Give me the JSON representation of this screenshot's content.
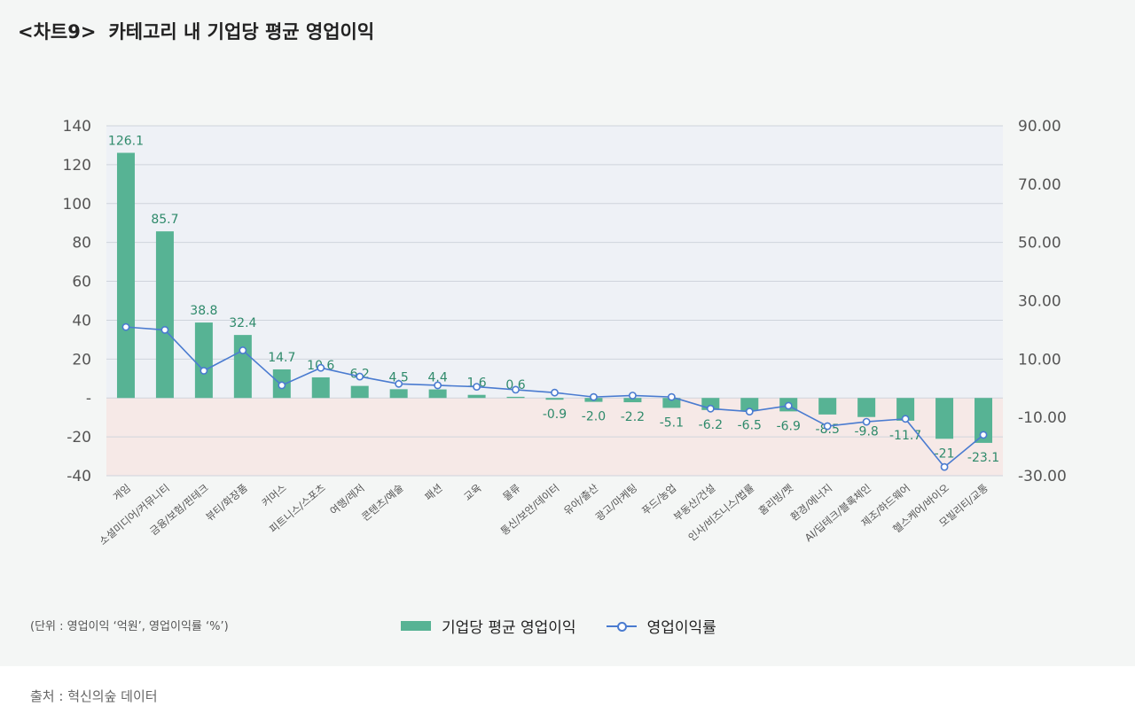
{
  "header": {
    "prefix": "<차트9>",
    "title": "카테고리 내 기업당 평균 영업이익"
  },
  "legend": {
    "bar_label": "기업당 평균 영업이익",
    "line_label": "영업이익률"
  },
  "unit_note": "(단위 : 영업이익 ‘억원’, 영업이익률 ‘%’)",
  "source": "출처 : 혁신의숲 데이터",
  "colors": {
    "bar": "#57b394",
    "bar_label": "#2f8a6b",
    "line": "#4a7bd0",
    "positive_bg": "#eef1f6",
    "negative_bg": "#f6e9e7"
  },
  "chart_data": {
    "type": "bar",
    "categories": [
      "게임",
      "소셜미디어/커뮤니티",
      "금융/보험/핀테크",
      "뷰티/화장품",
      "커머스",
      "피트니스/스포츠",
      "여행/레저",
      "콘텐츠/예술",
      "패션",
      "교육",
      "물류",
      "통신/보안/데이터",
      "유아/출산",
      "광고/마케팅",
      "푸드/농업",
      "부동산/건설",
      "인사/비즈니스/법률",
      "홈리빙/펫",
      "환경/에너지",
      "AI/딥테크/블록체인",
      "제조/하드웨어",
      "헬스케어/바이오",
      "모빌리티/교통"
    ],
    "series": [
      {
        "name": "기업당 평균 영업이익",
        "type": "bar",
        "axis": "left",
        "values": [
          126.1,
          85.7,
          38.8,
          32.4,
          14.7,
          10.6,
          6.2,
          4.5,
          4.4,
          1.6,
          0.6,
          -0.9,
          -2.0,
          -2.2,
          -5.1,
          -6.2,
          -6.5,
          -6.9,
          -8.5,
          -9.8,
          -11.7,
          -21,
          -23.1
        ],
        "labels": [
          "126.1",
          "85.7",
          "38.8",
          "32.4",
          "14.7",
          "10.6",
          "6.2",
          "4.5",
          "4.4",
          "1.6",
          "0.6",
          "-0.9",
          "-2.0",
          "-2.2",
          "-5.1",
          "-6.2",
          "-6.5",
          "-6.9",
          "-8.5",
          "-9.8",
          "-11.7",
          "-21",
          "-23.1"
        ]
      },
      {
        "name": "영업이익률",
        "type": "line",
        "axis": "right",
        "values": [
          21.0,
          20.0,
          6.0,
          13.0,
          1.0,
          7.0,
          4.0,
          1.5,
          1.0,
          0.5,
          -0.5,
          -1.5,
          -3.0,
          -2.5,
          -3.0,
          -7.0,
          -8.0,
          -6.0,
          -13.0,
          -11.5,
          -10.5,
          -27.0,
          -16.0
        ]
      }
    ],
    "left_axis": {
      "min": -40,
      "max": 140,
      "ticks": [
        140,
        120,
        100,
        80,
        60,
        40,
        20,
        0,
        -20,
        -40
      ],
      "tick_labels": [
        "140",
        "120",
        "100",
        "80",
        "60",
        "40",
        "20",
        "-",
        "-20",
        "-40"
      ]
    },
    "right_axis": {
      "min": -30,
      "max": 90,
      "ticks": [
        90,
        70,
        50,
        30,
        10,
        -10,
        -30
      ],
      "tick_labels": [
        "90.00",
        "70.00",
        "50.00",
        "30.00",
        "10.00",
        "-10.00",
        "-30.00"
      ]
    },
    "grid": true,
    "legend_position": "bottom"
  }
}
